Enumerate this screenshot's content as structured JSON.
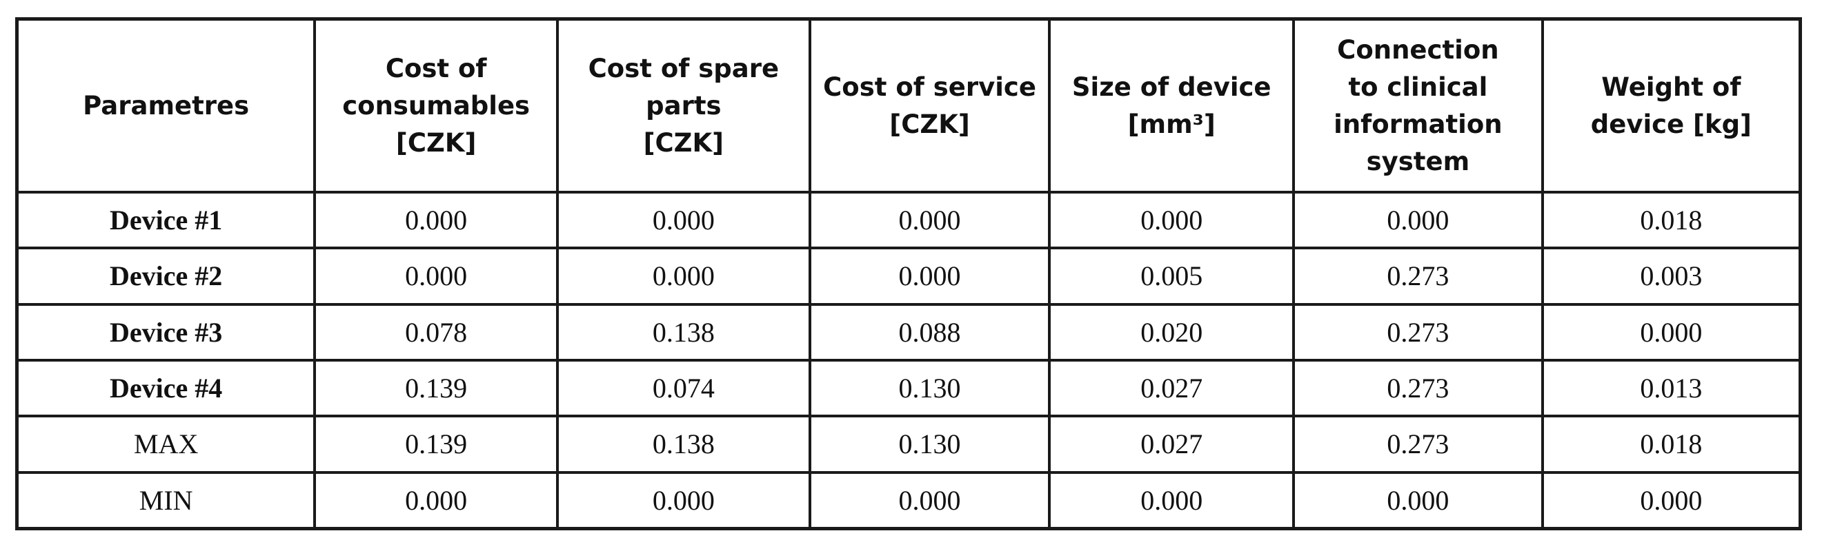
{
  "table": {
    "header": [
      {
        "lines": [
          "Parametres"
        ]
      },
      {
        "lines": [
          "Cost of",
          "consumables",
          "[CZK]"
        ]
      },
      {
        "lines": [
          "Cost of spare",
          "parts",
          "[CZK]"
        ]
      },
      {
        "lines": [
          "Cost of service",
          "[CZK]"
        ]
      },
      {
        "lines": [
          "Size of device",
          "[mm³]"
        ]
      },
      {
        "lines": [
          "Connection",
          "to clinical",
          "information",
          "system"
        ]
      },
      {
        "lines": [
          "Weight of",
          "device [kg]"
        ]
      }
    ],
    "rows": [
      {
        "label": "Device #1",
        "values": [
          "0.000",
          "0.000",
          "0.000",
          "0.000",
          "0.000",
          "0.018"
        ]
      },
      {
        "label": "Device #2",
        "values": [
          "0.000",
          "0.000",
          "0.000",
          "0.005",
          "0.273",
          "0.003"
        ]
      },
      {
        "label": "Device #3",
        "values": [
          "0.078",
          "0.138",
          "0.088",
          "0.020",
          "0.273",
          "0.000"
        ]
      },
      {
        "label": "Device #4",
        "values": [
          "0.139",
          "0.074",
          "0.130",
          "0.027",
          "0.273",
          "0.013"
        ]
      },
      {
        "label": "MAX",
        "values": [
          "0.139",
          "0.138",
          "0.130",
          "0.027",
          "0.273",
          "0.018"
        ]
      },
      {
        "label": "MIN",
        "values": [
          "0.000",
          "0.000",
          "0.000",
          "0.000",
          "0.000",
          "0.000"
        ]
      }
    ]
  }
}
